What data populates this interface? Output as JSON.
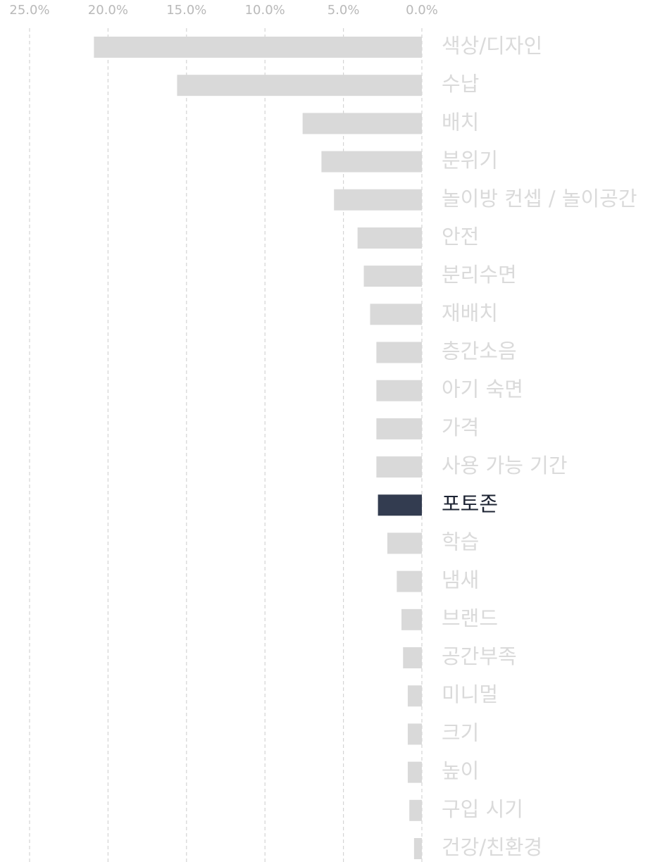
{
  "chart_data": {
    "type": "barh",
    "categories": [
      "색상/디자인",
      "수납",
      "배치",
      "분위기",
      "놀이방 컨셉 / 놀이공간",
      "안전",
      "분리수면",
      "재배치",
      "층간소음",
      "아기 숙면",
      "가격",
      "사용 가능 기간",
      "포토존",
      "학습",
      "냄새",
      "브랜드",
      "공간부족",
      "미니멀",
      "크기",
      "높이",
      "구입 시기",
      "건강/친환경"
    ],
    "values": [
      20.9,
      15.6,
      7.6,
      6.4,
      5.6,
      4.1,
      3.7,
      3.3,
      2.9,
      2.9,
      2.9,
      2.9,
      2.8,
      2.2,
      1.6,
      1.3,
      1.2,
      0.9,
      0.9,
      0.9,
      0.8,
      0.5
    ],
    "colors": [
      "#d9d9d9",
      "#d9d9d9",
      "#d9d9d9",
      "#d9d9d9",
      "#d9d9d9",
      "#d9d9d9",
      "#d9d9d9",
      "#d9d9d9",
      "#d9d9d9",
      "#d9d9d9",
      "#d9d9d9",
      "#d9d9d9",
      "#333c50",
      "#d9d9d9",
      "#d9d9d9",
      "#d9d9d9",
      "#d9d9d9",
      "#d9d9d9",
      "#d9d9d9",
      "#d9d9d9",
      "#d9d9d9",
      "#d9d9d9"
    ],
    "label_colors": [
      "#dadada",
      "#dadada",
      "#dadada",
      "#dadada",
      "#dadada",
      "#dadada",
      "#dadada",
      "#dadada",
      "#dadada",
      "#dadada",
      "#dadada",
      "#dadada",
      "#1e2433",
      "#dadada",
      "#dadada",
      "#dadada",
      "#dadada",
      "#dadada",
      "#dadada",
      "#dadada",
      "#dadada",
      "#dadada"
    ],
    "xlim": [
      25,
      0
    ],
    "xticks": [
      {
        "value": 25,
        "label": "25.0%"
      },
      {
        "value": 20,
        "label": "20.0%"
      },
      {
        "value": 15,
        "label": "15.0%"
      },
      {
        "value": 10,
        "label": "10.0%"
      },
      {
        "value": 5,
        "label": "5.0%"
      },
      {
        "value": 0,
        "label": "0.0%"
      }
    ],
    "grid": true
  }
}
